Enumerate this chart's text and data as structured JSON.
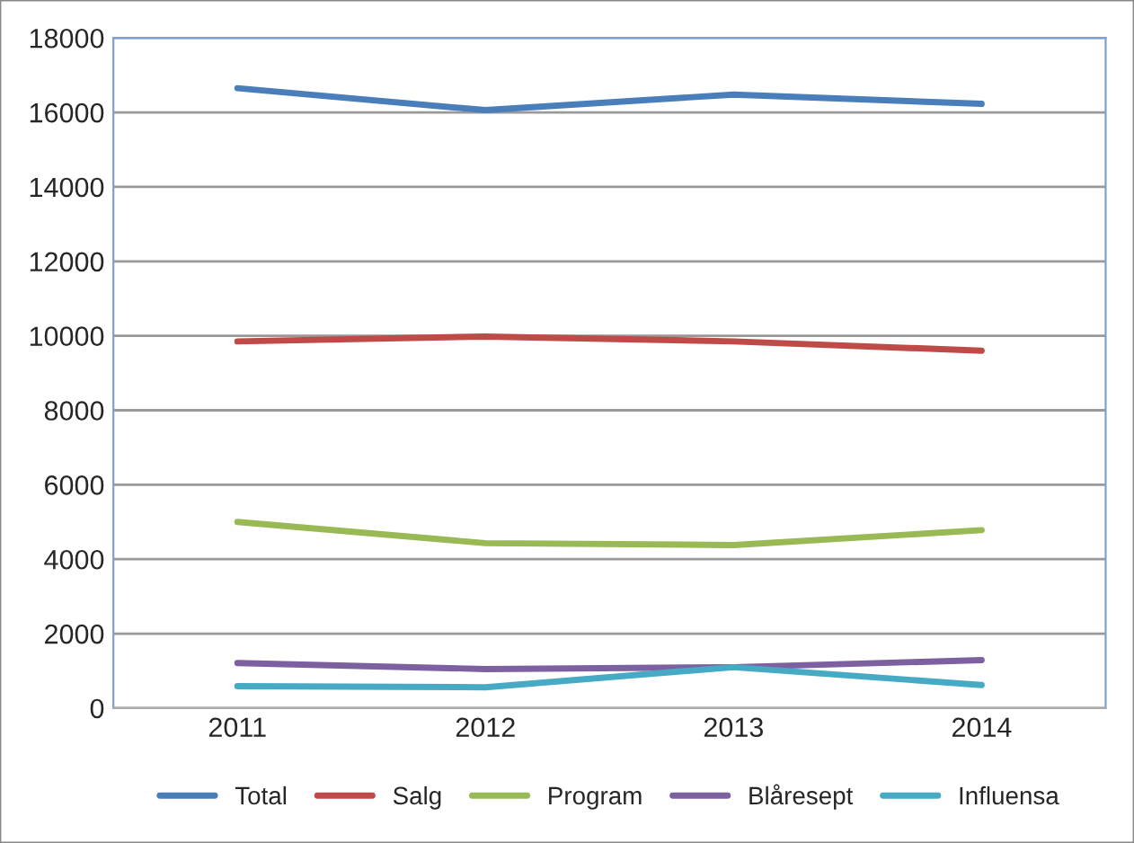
{
  "chart_data": {
    "type": "line",
    "categories": [
      "2011",
      "2012",
      "2013",
      "2014"
    ],
    "series": [
      {
        "name": "Total",
        "color": "#4a7ebb",
        "values": [
          16650,
          16060,
          16480,
          16230
        ]
      },
      {
        "name": "Salg",
        "color": "#be4b48",
        "values": [
          9850,
          9980,
          9850,
          9600
        ]
      },
      {
        "name": "Program",
        "color": "#98b954",
        "values": [
          5000,
          4430,
          4380,
          4780
        ]
      },
      {
        "name": "Blåresept",
        "color": "#7d60a0",
        "values": [
          1210,
          1050,
          1100,
          1290
        ]
      },
      {
        "name": "Influensa",
        "color": "#46aac5",
        "values": [
          590,
          560,
          1100,
          620
        ]
      }
    ],
    "ylim": [
      0,
      18000
    ],
    "yticks": [
      0,
      2000,
      4000,
      6000,
      8000,
      10000,
      12000,
      14000,
      16000,
      18000
    ],
    "grid": "y",
    "legend": "bottom",
    "marker": "none",
    "line_style": "solid"
  }
}
